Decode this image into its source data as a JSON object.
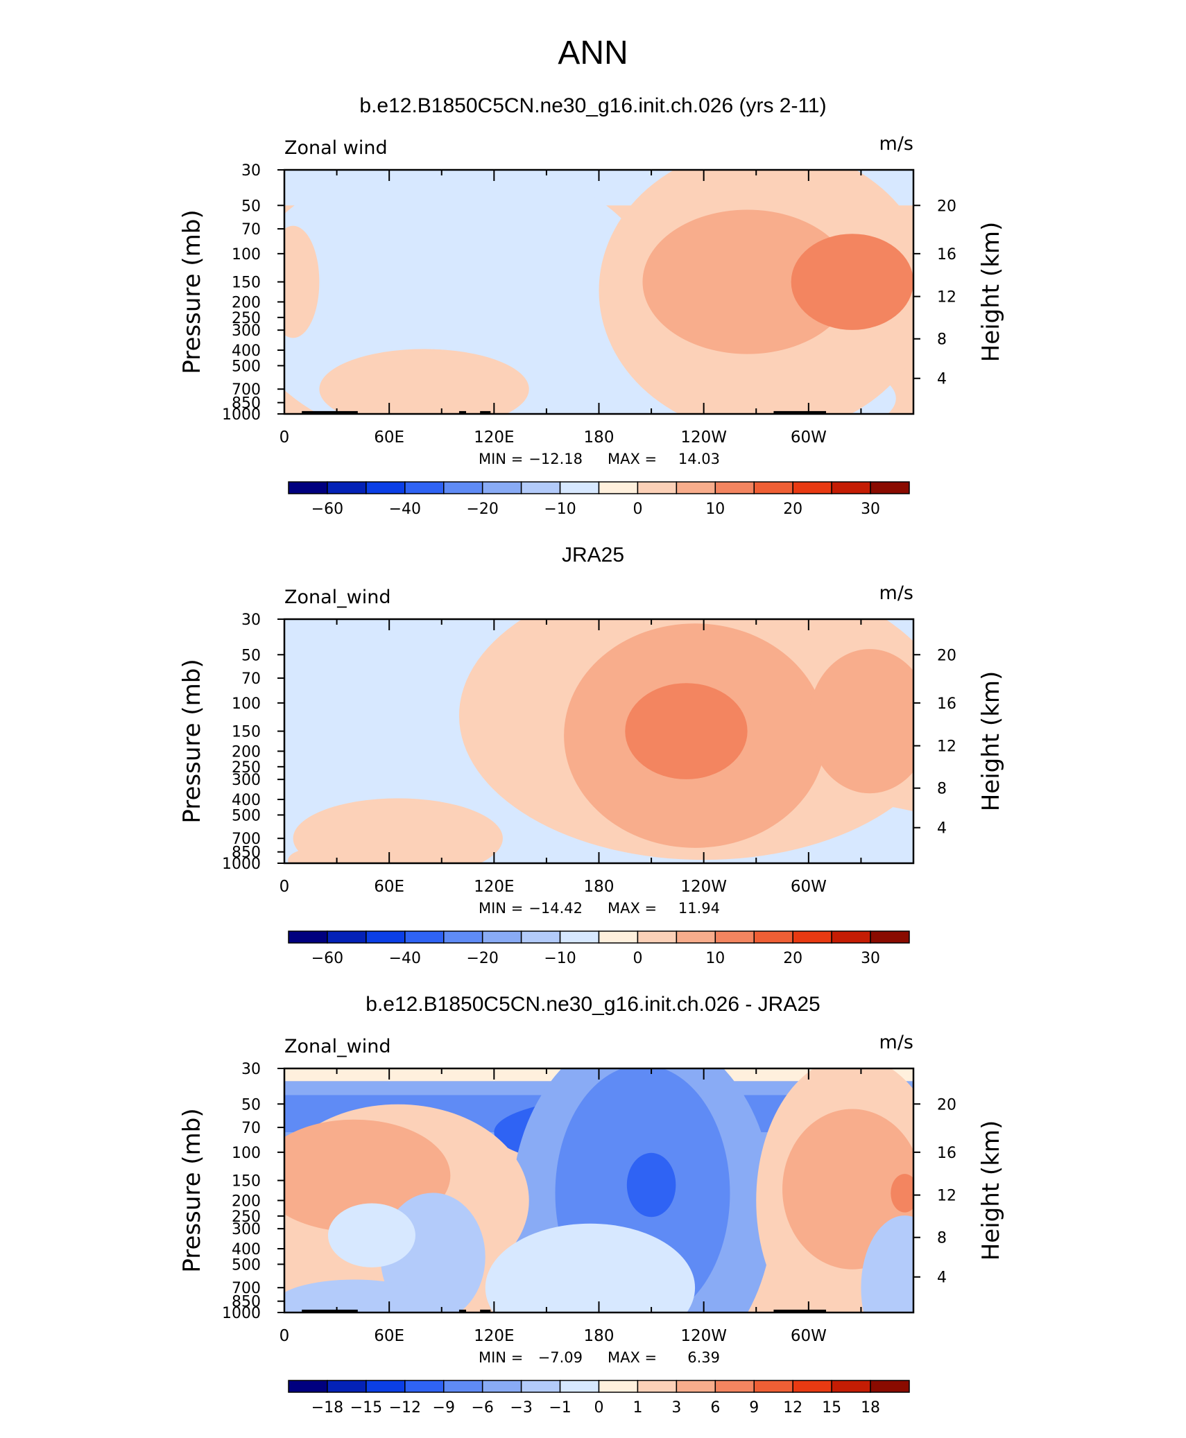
{
  "figure": {
    "title": "ANN",
    "panels": [
      {
        "title": "b.e12.B1850C5CN.ne30_g16.init.ch.026 (yrs 2-11)",
        "variable": "Zonal wind",
        "units": "m/s",
        "stats": {
          "min_label": "MIN =",
          "min": "−12.18",
          "max_label": "MAX =",
          "max": "14.03"
        },
        "scale": "abs",
        "colorbar_labels": [
          "−60",
          "−40",
          "−20",
          "−10",
          "0",
          "10",
          "20",
          "30"
        ],
        "features": [
          {
            "kind": "band",
            "y0": 30,
            "y1": 50,
            "level": -1
          },
          {
            "kind": "blob",
            "lon": 110,
            "p": 150,
            "rx": 75,
            "ry": 0.45,
            "level": -2
          },
          {
            "kind": "blob",
            "lon": 95,
            "p": 200,
            "rx": 120,
            "ry": 0.9,
            "level": -1
          },
          {
            "kind": "blob",
            "lon": 230,
            "p": 800,
            "rx": 120,
            "ry": 0.35,
            "level": -1
          },
          {
            "kind": "blob",
            "lon": 15,
            "p": 250,
            "rx": 10,
            "ry": 0.35,
            "level": -1
          },
          {
            "kind": "blob",
            "lon": 275,
            "p": 170,
            "rx": 95,
            "ry": 0.9,
            "level": 1
          },
          {
            "kind": "blob",
            "lon": 265,
            "p": 150,
            "rx": 60,
            "ry": 0.45,
            "level": 2
          },
          {
            "kind": "blob",
            "lon": 325,
            "p": 150,
            "rx": 35,
            "ry": 0.3,
            "level": 3
          },
          {
            "kind": "blob",
            "lon": 80,
            "p": 700,
            "rx": 60,
            "ry": 0.25,
            "level": 1
          },
          {
            "kind": "blob",
            "lon": 5,
            "p": 150,
            "rx": 15,
            "ry": 0.35,
            "level": 1
          },
          {
            "kind": "blob",
            "lon": 295,
            "p": 950,
            "rx": 25,
            "ry": 0.1,
            "level": 1
          }
        ],
        "land": [
          [
            10,
            42
          ],
          [
            100,
            104
          ],
          [
            112,
            118
          ],
          [
            280,
            310
          ]
        ]
      },
      {
        "title": "JRA25",
        "variable": "Zonal_wind",
        "units": "m/s",
        "stats": {
          "min_label": "MIN =",
          "min": "−14.42",
          "max_label": "MAX =",
          "max": "11.94"
        },
        "scale": "abs",
        "colorbar_labels": [
          "−60",
          "−40",
          "−20",
          "−10",
          "0",
          "10",
          "20",
          "30"
        ],
        "features": [
          {
            "kind": "band",
            "y0": 30,
            "y1": 42,
            "level": -1
          },
          {
            "kind": "blob",
            "lon": 90,
            "p": 160,
            "rx": 85,
            "ry": 0.5,
            "level": -2
          },
          {
            "kind": "blob",
            "lon": 80,
            "p": 250,
            "rx": 130,
            "ry": 1.0,
            "level": -1
          },
          {
            "kind": "blob",
            "lon": 270,
            "p": 850,
            "rx": 130,
            "ry": 0.35,
            "level": -1
          },
          {
            "kind": "blob",
            "lon": 240,
            "p": 120,
            "rx": 140,
            "ry": 0.9,
            "level": 1
          },
          {
            "kind": "blob",
            "lon": 235,
            "p": 160,
            "rx": 75,
            "ry": 0.7,
            "level": 2
          },
          {
            "kind": "blob",
            "lon": 230,
            "p": 150,
            "rx": 35,
            "ry": 0.3,
            "level": 3
          },
          {
            "kind": "blob",
            "lon": 335,
            "p": 130,
            "rx": 35,
            "ry": 0.45,
            "level": 2
          },
          {
            "kind": "blob",
            "lon": 65,
            "p": 700,
            "rx": 60,
            "ry": 0.25,
            "level": 1
          },
          {
            "kind": "blob",
            "lon": 20,
            "p": 960,
            "rx": 18,
            "ry": 0.08,
            "level": 1
          }
        ],
        "land": []
      },
      {
        "title": "b.e12.B1850C5CN.ne30_g16.init.ch.026 - JRA25",
        "variable": "Zonal_wind",
        "units": "m/s",
        "stats": {
          "min_label": "MIN =",
          "min": "−7.09",
          "max_label": "MAX =",
          "max": "6.39"
        },
        "scale": "diff",
        "colorbar_labels": [
          "−18",
          "−15",
          "−12",
          "−9",
          "−6",
          "−3",
          "−1",
          "0",
          "1",
          "3",
          "6",
          "9",
          "12",
          "15",
          "18"
        ],
        "features": [
          {
            "kind": "band",
            "y0": 30,
            "y1": 36,
            "level": 0
          },
          {
            "kind": "band",
            "y0": 36,
            "y1": 90,
            "level": -3
          },
          {
            "kind": "band",
            "y0": 44,
            "y1": 75,
            "level": -4
          },
          {
            "kind": "blob",
            "lon": 195,
            "p": 75,
            "rx": 75,
            "ry": 0.22,
            "level": -5
          },
          {
            "kind": "blob",
            "lon": 205,
            "p": 220,
            "rx": 75,
            "ry": 1.1,
            "level": -3
          },
          {
            "kind": "blob",
            "lon": 205,
            "p": 180,
            "rx": 50,
            "ry": 0.8,
            "level": -4
          },
          {
            "kind": "blob",
            "lon": 210,
            "p": 160,
            "rx": 14,
            "ry": 0.2,
            "level": -5
          },
          {
            "kind": "blob",
            "lon": 65,
            "p": 200,
            "rx": 75,
            "ry": 0.6,
            "level": 1
          },
          {
            "kind": "blob",
            "lon": 40,
            "p": 140,
            "rx": 55,
            "ry": 0.35,
            "level": 2
          },
          {
            "kind": "blob",
            "lon": 325,
            "p": 200,
            "rx": 55,
            "ry": 0.9,
            "level": 1
          },
          {
            "kind": "blob",
            "lon": 325,
            "p": 170,
            "rx": 40,
            "ry": 0.5,
            "level": 2
          },
          {
            "kind": "blob",
            "lon": 355,
            "p": 180,
            "rx": 8,
            "ry": 0.12,
            "level": 3
          },
          {
            "kind": "blob",
            "lon": 85,
            "p": 450,
            "rx": 30,
            "ry": 0.4,
            "level": -2
          },
          {
            "kind": "blob",
            "lon": 50,
            "p": 330,
            "rx": 25,
            "ry": 0.2,
            "level": -1
          },
          {
            "kind": "blob",
            "lon": 175,
            "p": 700,
            "rx": 60,
            "ry": 0.4,
            "level": -1
          },
          {
            "kind": "blob",
            "lon": 40,
            "p": 880,
            "rx": 45,
            "ry": 0.15,
            "level": -2
          },
          {
            "kind": "blob",
            "lon": 355,
            "p": 700,
            "rx": 25,
            "ry": 0.45,
            "level": -2
          }
        ],
        "land": [
          [
            10,
            42
          ],
          [
            100,
            104
          ],
          [
            112,
            118
          ],
          [
            280,
            310
          ]
        ]
      }
    ]
  },
  "chart_data": [
    {
      "type": "heatmap",
      "title": "b.e12.B1850C5CN.ne30_g16.init.ch.026 (yrs 2-11)",
      "xlabel": "",
      "ylabel": "Pressure (mb)",
      "ylabel_right": "Height (km)",
      "x_ticks": [
        "0",
        "60E",
        "120E",
        "180",
        "120W",
        "60W"
      ],
      "x_range": [
        0,
        360
      ],
      "y_ticks": [
        "30",
        "50",
        "70",
        "100",
        "150",
        "200",
        "250",
        "300",
        "400",
        "500",
        "700",
        "850",
        "1000"
      ],
      "y_range": [
        1000,
        30
      ],
      "y_scale": "log",
      "right_ticks": [
        "20",
        "16",
        "12",
        "8",
        "4"
      ],
      "right_tick_pressures": [
        50,
        100,
        185,
        340,
        600
      ],
      "colorbar_levels": [
        -70,
        -60,
        -50,
        -40,
        -30,
        -20,
        -15,
        -10,
        -5,
        0,
        5,
        10,
        15,
        20,
        25,
        30
      ],
      "min": -12.18,
      "max": 14.03
    },
    {
      "type": "heatmap",
      "title": "JRA25",
      "xlabel": "",
      "ylabel": "Pressure (mb)",
      "ylabel_right": "Height (km)",
      "x_ticks": [
        "0",
        "60E",
        "120E",
        "180",
        "120W",
        "60W"
      ],
      "x_range": [
        0,
        360
      ],
      "y_ticks": [
        "30",
        "50",
        "70",
        "100",
        "150",
        "200",
        "250",
        "300",
        "400",
        "500",
        "700",
        "850",
        "1000"
      ],
      "y_range": [
        1000,
        30
      ],
      "y_scale": "log",
      "right_ticks": [
        "20",
        "16",
        "12",
        "8",
        "4"
      ],
      "right_tick_pressures": [
        50,
        100,
        185,
        340,
        600
      ],
      "colorbar_levels": [
        -70,
        -60,
        -50,
        -40,
        -30,
        -20,
        -15,
        -10,
        -5,
        0,
        5,
        10,
        15,
        20,
        25,
        30
      ],
      "min": -14.42,
      "max": 11.94
    },
    {
      "type": "heatmap",
      "title": "b.e12.B1850C5CN.ne30_g16.init.ch.026 - JRA25",
      "xlabel": "",
      "ylabel": "Pressure (mb)",
      "ylabel_right": "Height (km)",
      "x_ticks": [
        "0",
        "60E",
        "120E",
        "180",
        "120W",
        "60W"
      ],
      "x_range": [
        0,
        360
      ],
      "y_ticks": [
        "30",
        "50",
        "70",
        "100",
        "150",
        "200",
        "250",
        "300",
        "400",
        "500",
        "700",
        "850",
        "1000"
      ],
      "y_range": [
        1000,
        30
      ],
      "y_scale": "log",
      "right_ticks": [
        "20",
        "16",
        "12",
        "8",
        "4"
      ],
      "right_tick_pressures": [
        50,
        100,
        185,
        340,
        600
      ],
      "colorbar_levels": [
        -18,
        -15,
        -12,
        -9,
        -6,
        -3,
        -1,
        0,
        1,
        3,
        6,
        9,
        12,
        15,
        18
      ],
      "min": -7.09,
      "max": 6.39
    }
  ],
  "axes": {
    "ylabel_left": "Pressure (mb)",
    "ylabel_right": "Height (km)"
  },
  "colors": {
    "palette16": [
      "#00007f",
      "#0422b7",
      "#0b3fe6",
      "#2f63f4",
      "#5f8bf5",
      "#89abf5",
      "#b3cbfa",
      "#d7e8ff",
      "#fff0dd",
      "#fcd1b8",
      "#f8ad8c",
      "#f38560",
      "#ef5f35",
      "#e83a12",
      "#c51d04",
      "#8a0b00"
    ],
    "land": "#000000"
  }
}
